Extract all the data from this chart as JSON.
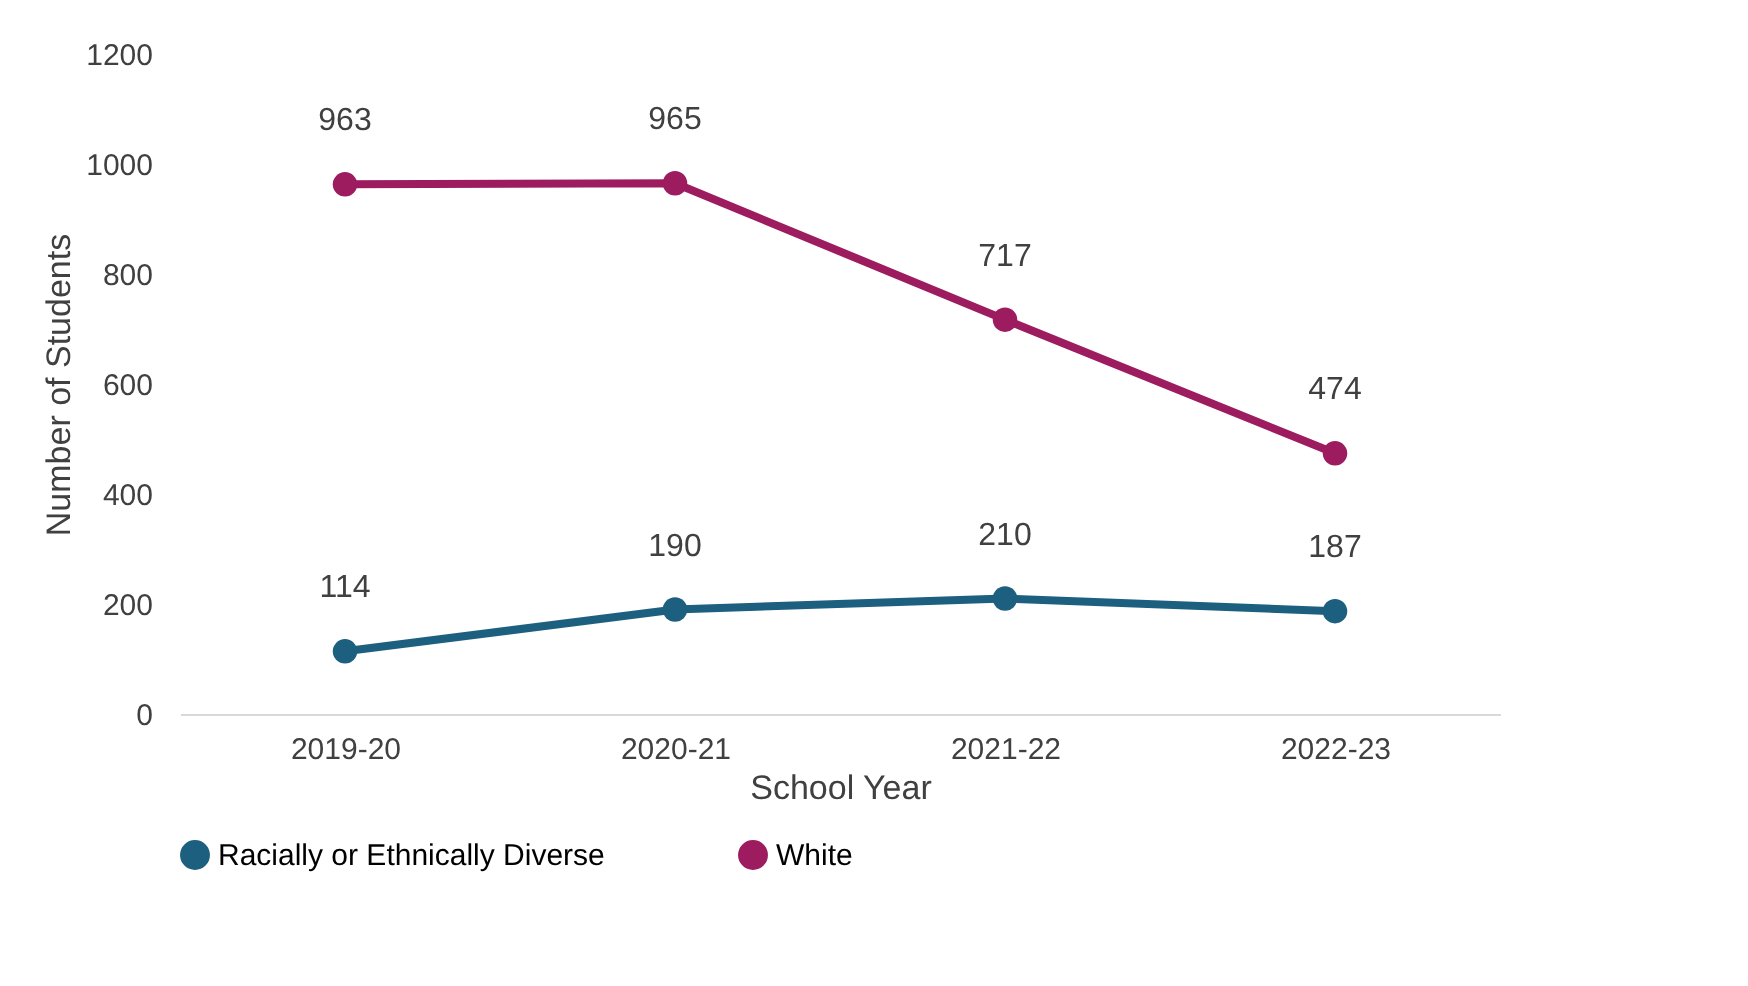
{
  "chart_data": {
    "type": "line",
    "xlabel": "School Year",
    "ylabel": "Number of Students",
    "categories": [
      "2019-20",
      "2020-21",
      "2021-22",
      "2022-23"
    ],
    "series": [
      {
        "name": "Racially or Ethnically Diverse",
        "color": "#1d5f7f",
        "values": [
          114,
          190,
          210,
          187
        ]
      },
      {
        "name": "White",
        "color": "#9c1c5f",
        "values": [
          963,
          965,
          717,
          474
        ]
      }
    ],
    "ylim": [
      0,
      1200
    ],
    "yticks": [
      0,
      200,
      400,
      600,
      800,
      1000,
      1200
    ],
    "data_labels": true,
    "legend": "bottom",
    "grid": false,
    "marker": "circle",
    "line_style": "solid"
  }
}
